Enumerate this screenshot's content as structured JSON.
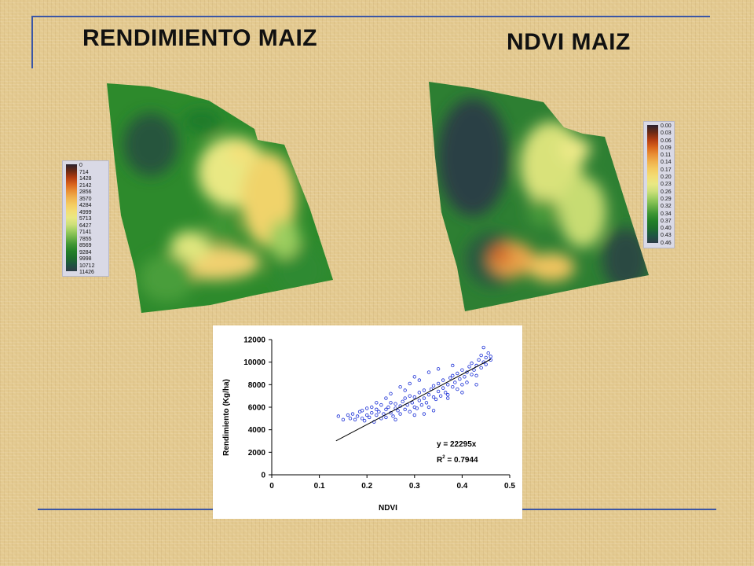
{
  "slide": {
    "left_title": "RENDIMIENTO MAIZ",
    "right_title": "NDVI MAIZ"
  },
  "yield_legend": {
    "labels": [
      "0",
      "714",
      "1428",
      "2142",
      "2856",
      "3570",
      "4284",
      "4999",
      "5713",
      "6427",
      "7141",
      "7855",
      "8569",
      "9284",
      "9998",
      "10712",
      "11426"
    ],
    "colors": [
      "#2a2230",
      "#6d2a14",
      "#b23c12",
      "#d9641c",
      "#e98f35",
      "#f0b24e",
      "#f4cc62",
      "#f3dd74",
      "#e9e883",
      "#cde07a",
      "#9ccd5f",
      "#6db248",
      "#3f9634",
      "#238028",
      "#1d6e2c",
      "#1f5542",
      "#2e3c48"
    ]
  },
  "ndvi_legend": {
    "labels": [
      "0.00",
      "0.03",
      "0.06",
      "0.09",
      "0.11",
      "0.14",
      "0.17",
      "0.20",
      "0.23",
      "0.26",
      "0.29",
      "0.32",
      "0.34",
      "0.37",
      "0.40",
      "0.43",
      "0.46"
    ],
    "colors": [
      "#2a2230",
      "#6d2a14",
      "#b23c12",
      "#d9641c",
      "#e98f35",
      "#f0b24e",
      "#f4cc62",
      "#f3dd74",
      "#e9e883",
      "#cde07a",
      "#9ccd5f",
      "#6db248",
      "#3f9634",
      "#238028",
      "#1d6e2c",
      "#1f5542",
      "#2e3c48"
    ]
  },
  "chart_data": {
    "type": "scatter",
    "xlabel": "NDVI",
    "ylabel": "Rendimiento (Kg/ha)",
    "xlim": [
      0,
      0.5
    ],
    "ylim": [
      0,
      12000
    ],
    "x_ticks": [
      "0",
      "0.1",
      "0.2",
      "0.3",
      "0.4",
      "0.5"
    ],
    "y_ticks": [
      "0",
      "2000",
      "4000",
      "6000",
      "8000",
      "10000",
      "12000"
    ],
    "equation": "y = 22295x",
    "r2_label": "R",
    "r2_sup": "2",
    "r2_value": " = 0.7944",
    "trendline": {
      "slope": 22295,
      "x_range": [
        0.135,
        0.46
      ]
    },
    "points": [
      [
        0.16,
        5300
      ],
      [
        0.165,
        5000
      ],
      [
        0.17,
        5400
      ],
      [
        0.175,
        4900
      ],
      [
        0.18,
        5200
      ],
      [
        0.185,
        5600
      ],
      [
        0.19,
        5000
      ],
      [
        0.19,
        5700
      ],
      [
        0.195,
        4800
      ],
      [
        0.2,
        5300
      ],
      [
        0.2,
        5900
      ],
      [
        0.205,
        5100
      ],
      [
        0.21,
        5500
      ],
      [
        0.21,
        6000
      ],
      [
        0.215,
        4700
      ],
      [
        0.22,
        5300
      ],
      [
        0.22,
        5800
      ],
      [
        0.225,
        5600
      ],
      [
        0.23,
        5000
      ],
      [
        0.23,
        6200
      ],
      [
        0.235,
        5400
      ],
      [
        0.24,
        5800
      ],
      [
        0.24,
        5100
      ],
      [
        0.245,
        6000
      ],
      [
        0.25,
        5500
      ],
      [
        0.25,
        6400
      ],
      [
        0.255,
        5200
      ],
      [
        0.26,
        5900
      ],
      [
        0.26,
        6300
      ],
      [
        0.265,
        5700
      ],
      [
        0.27,
        6100
      ],
      [
        0.27,
        5400
      ],
      [
        0.275,
        6500
      ],
      [
        0.28,
        5800
      ],
      [
        0.28,
        6800
      ],
      [
        0.285,
        6200
      ],
      [
        0.29,
        5600
      ],
      [
        0.29,
        7000
      ],
      [
        0.295,
        6400
      ],
      [
        0.3,
        6000
      ],
      [
        0.3,
        6900
      ],
      [
        0.305,
        5900
      ],
      [
        0.31,
        6600
      ],
      [
        0.31,
        7300
      ],
      [
        0.315,
        6200
      ],
      [
        0.32,
        6800
      ],
      [
        0.32,
        7500
      ],
      [
        0.325,
        6400
      ],
      [
        0.33,
        7100
      ],
      [
        0.33,
        6000
      ],
      [
        0.335,
        7600
      ],
      [
        0.34,
        6900
      ],
      [
        0.34,
        7900
      ],
      [
        0.345,
        6700
      ],
      [
        0.35,
        7400
      ],
      [
        0.35,
        8100
      ],
      [
        0.355,
        7000
      ],
      [
        0.36,
        7700
      ],
      [
        0.36,
        8400
      ],
      [
        0.365,
        7300
      ],
      [
        0.37,
        8000
      ],
      [
        0.37,
        7100
      ],
      [
        0.375,
        8600
      ],
      [
        0.38,
        7800
      ],
      [
        0.38,
        8800
      ],
      [
        0.385,
        8200
      ],
      [
        0.39,
        7600
      ],
      [
        0.39,
        9000
      ],
      [
        0.395,
        8500
      ],
      [
        0.4,
        8000
      ],
      [
        0.4,
        9300
      ],
      [
        0.405,
        8700
      ],
      [
        0.41,
        9100
      ],
      [
        0.41,
        8200
      ],
      [
        0.415,
        9600
      ],
      [
        0.42,
        8900
      ],
      [
        0.42,
        9900
      ],
      [
        0.425,
        9300
      ],
      [
        0.43,
        9700
      ],
      [
        0.43,
        8800
      ],
      [
        0.435,
        10200
      ],
      [
        0.44,
        9500
      ],
      [
        0.44,
        10600
      ],
      [
        0.445,
        10000
      ],
      [
        0.45,
        10400
      ],
      [
        0.45,
        9800
      ],
      [
        0.455,
        10800
      ],
      [
        0.46,
        10200
      ],
      [
        0.46,
        10500
      ],
      [
        0.445,
        11300
      ],
      [
        0.25,
        7200
      ],
      [
        0.27,
        7800
      ],
      [
        0.29,
        8100
      ],
      [
        0.31,
        8400
      ],
      [
        0.3,
        8700
      ],
      [
        0.33,
        9100
      ],
      [
        0.28,
        7500
      ],
      [
        0.26,
        4900
      ],
      [
        0.3,
        5300
      ],
      [
        0.34,
        5700
      ],
      [
        0.14,
        5200
      ],
      [
        0.15,
        4900
      ],
      [
        0.37,
        6800
      ],
      [
        0.4,
        7300
      ],
      [
        0.43,
        8000
      ],
      [
        0.35,
        9400
      ],
      [
        0.38,
        9700
      ],
      [
        0.32,
        5400
      ],
      [
        0.24,
        6800
      ],
      [
        0.22,
        6400
      ]
    ]
  }
}
